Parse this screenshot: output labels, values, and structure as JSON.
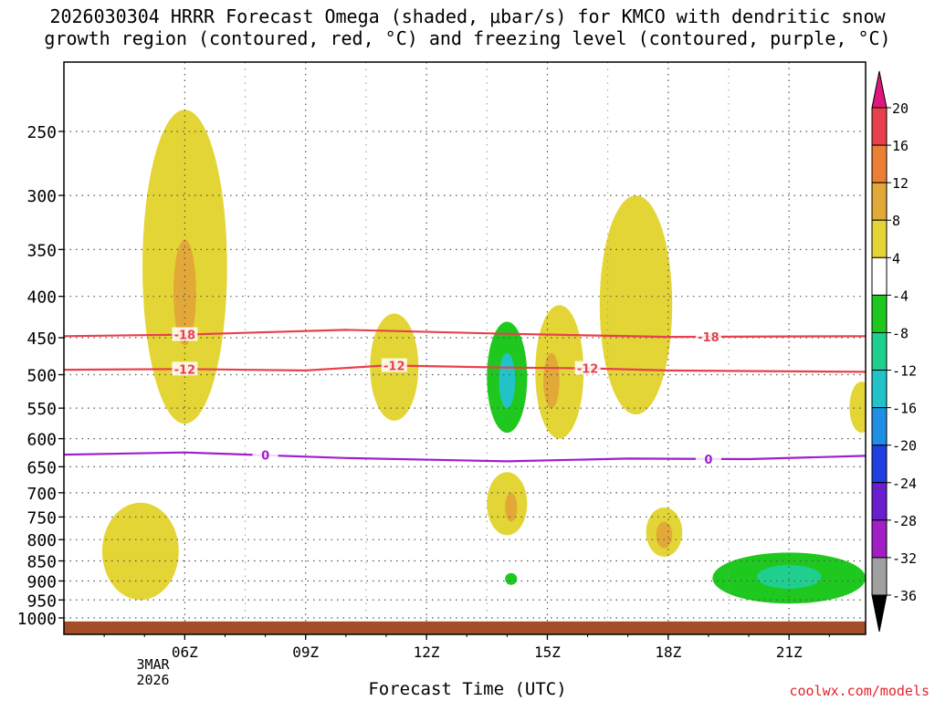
{
  "chart_data": {
    "type": "heatmap",
    "title": "2026030304 HRRR Forecast Omega (shaded, μbar/s) for KMCO with dendritic snow growth region (contoured, red, °C) and freezing level (contoured, purple, °C)",
    "title_lines": [
      "2026030304 HRRR Forecast Omega (shaded, μbar/s) for KMCO with dendritic snow",
      "growth region (contoured, red, °C) and freezing level (contoured, purple, °C)"
    ],
    "xlabel": "Forecast Time (UTC)",
    "ylabel": "",
    "x_ticks": [
      "06Z",
      "09Z",
      "12Z",
      "15Z",
      "18Z",
      "21Z"
    ],
    "x_tick_hours": [
      6,
      9,
      12,
      15,
      18,
      21
    ],
    "x_date_label": [
      "3MAR",
      "2026"
    ],
    "xlim_hours": [
      3,
      22.9
    ],
    "y_ticks": [
      250,
      300,
      350,
      400,
      450,
      500,
      550,
      600,
      650,
      700,
      750,
      800,
      850,
      900,
      950,
      1000
    ],
    "ylim_hpa": [
      200,
      1010
    ],
    "y_scale": "log-pressure",
    "colorbar": {
      "labels": [
        "20",
        "16",
        "12",
        "8",
        "4",
        "-4",
        "-8",
        "-12",
        "-16",
        "-20",
        "-24",
        "-28",
        "-32",
        "-36"
      ],
      "levels": [
        {
          "range": [
            16,
            20
          ],
          "color": "#e8404c"
        },
        {
          "range": [
            12,
            16
          ],
          "color": "#ec7f33"
        },
        {
          "range": [
            8,
            12
          ],
          "color": "#e2a838"
        },
        {
          "range": [
            4,
            8
          ],
          "color": "#e3d535"
        },
        {
          "range": [
            -4,
            4
          ],
          "color": "#ffffff"
        },
        {
          "range": [
            -8,
            -4
          ],
          "color": "#1ec81e"
        },
        {
          "range": [
            -12,
            -8
          ],
          "color": "#1fcf8f"
        },
        {
          "range": [
            -16,
            -12
          ],
          "color": "#22c3c8"
        },
        {
          "range": [
            -20,
            -16
          ],
          "color": "#1f8fe6"
        },
        {
          "range": [
            -24,
            -20
          ],
          "color": "#1f3fe0"
        },
        {
          "range": [
            -28,
            -24
          ],
          "color": "#6a1fcf"
        },
        {
          "range": [
            -32,
            -28
          ],
          "color": "#a11fc4"
        },
        {
          "range": [
            -36,
            -32
          ],
          "color": "#a0a0a0"
        }
      ],
      "top_arrow_color": "#e0177a",
      "bottom_arrow_color": "#000000"
    },
    "regions": [
      {
        "name": "upward-motion-06z-upper",
        "level_range": [
          4,
          8
        ],
        "hour_center": 6.0,
        "pressure_range": [
          235,
          575
        ]
      },
      {
        "name": "upward-motion-06z-core",
        "level_range": [
          8,
          12
        ],
        "hour_center": 6.0,
        "pressure_range": [
          340,
          460
        ]
      },
      {
        "name": "upward-motion-11z",
        "level_range": [
          4,
          8
        ],
        "hour_center": 11.2,
        "pressure_range": [
          420,
          570
        ]
      },
      {
        "name": "downward-motion-14z",
        "level_range": [
          -8,
          -4
        ],
        "hour_center": 14.0,
        "pressure_range": [
          430,
          590
        ]
      },
      {
        "name": "downward-motion-14z-core",
        "level_range": [
          -16,
          -12
        ],
        "hour_center": 14.0,
        "pressure_range": [
          470,
          550
        ]
      },
      {
        "name": "upward-motion-15z",
        "level_range": [
          4,
          8
        ],
        "hour_center": 15.3,
        "pressure_range": [
          410,
          600
        ]
      },
      {
        "name": "upward-motion-15z-core",
        "level_range": [
          8,
          12
        ],
        "hour_center": 15.1,
        "pressure_range": [
          470,
          550
        ]
      },
      {
        "name": "upward-motion-17z",
        "level_range": [
          4,
          8
        ],
        "hour_center": 17.2,
        "pressure_range": [
          300,
          560
        ]
      },
      {
        "name": "upward-motion-22z-edge",
        "level_range": [
          4,
          8
        ],
        "hour_center": 22.8,
        "pressure_range": [
          510,
          590
        ]
      },
      {
        "name": "upward-motion-14z-mid",
        "level_range": [
          4,
          8
        ],
        "hour_center": 14.0,
        "pressure_range": [
          660,
          790
        ]
      },
      {
        "name": "upward-motion-14z-mid-core",
        "level_range": [
          8,
          12
        ],
        "hour_center": 14.1,
        "pressure_range": [
          700,
          760
        ]
      },
      {
        "name": "upward-motion-18z-mid",
        "level_range": [
          4,
          8
        ],
        "hour_center": 17.9,
        "pressure_range": [
          730,
          840
        ]
      },
      {
        "name": "upward-motion-18z-mid-core",
        "level_range": [
          8,
          12
        ],
        "hour_center": 17.9,
        "pressure_range": [
          760,
          820
        ]
      },
      {
        "name": "upward-motion-05z-low",
        "level_range": [
          4,
          8
        ],
        "hour_center": 4.9,
        "pressure_range": [
          720,
          950
        ]
      },
      {
        "name": "downward-motion-14z-low",
        "level_range": [
          -8,
          -4
        ],
        "hour_center": 14.1,
        "pressure_range": [
          880,
          910
        ]
      },
      {
        "name": "downward-motion-21z-low",
        "level_range": [
          -8,
          -4
        ],
        "hour_center": 21.0,
        "pressure_range": [
          830,
          960
        ]
      },
      {
        "name": "downward-motion-21z-low-core",
        "level_range": [
          -12,
          -8
        ],
        "hour_center": 21.0,
        "pressure_range": [
          860,
          920
        ]
      }
    ],
    "contours": [
      {
        "name": "dendritic-minus-18",
        "label": "-18",
        "color": "#e8404c",
        "hours": [
          3.0,
          6.0,
          10.0,
          14.0,
          18.0,
          22.9
        ],
        "pressure": [
          448,
          446,
          440,
          445,
          449,
          448
        ],
        "label_hours": [
          6.0,
          19.0
        ]
      },
      {
        "name": "dendritic-minus-12",
        "label": "-12",
        "color": "#e8404c",
        "hours": [
          3.0,
          6.0,
          9.0,
          11.0,
          14.0,
          16.0,
          18.0,
          22.9
        ],
        "pressure": [
          493,
          492,
          494,
          487,
          490,
          491,
          494,
          496
        ],
        "label_hours": [
          6.0,
          11.2,
          16.0
        ]
      },
      {
        "name": "freezing-level-0",
        "label": "0",
        "color": "#9f1fcd",
        "hours": [
          3.0,
          6.0,
          10.0,
          14.0,
          17.0,
          20.0,
          22.9
        ],
        "pressure": [
          628,
          624,
          634,
          640,
          635,
          636,
          630
        ],
        "label_hours": [
          8.0,
          19.0
        ]
      }
    ],
    "ground": {
      "pressure_range": [
        1010,
        1050
      ],
      "color": "#a44e28"
    }
  },
  "credit": "coolwx.com/models"
}
